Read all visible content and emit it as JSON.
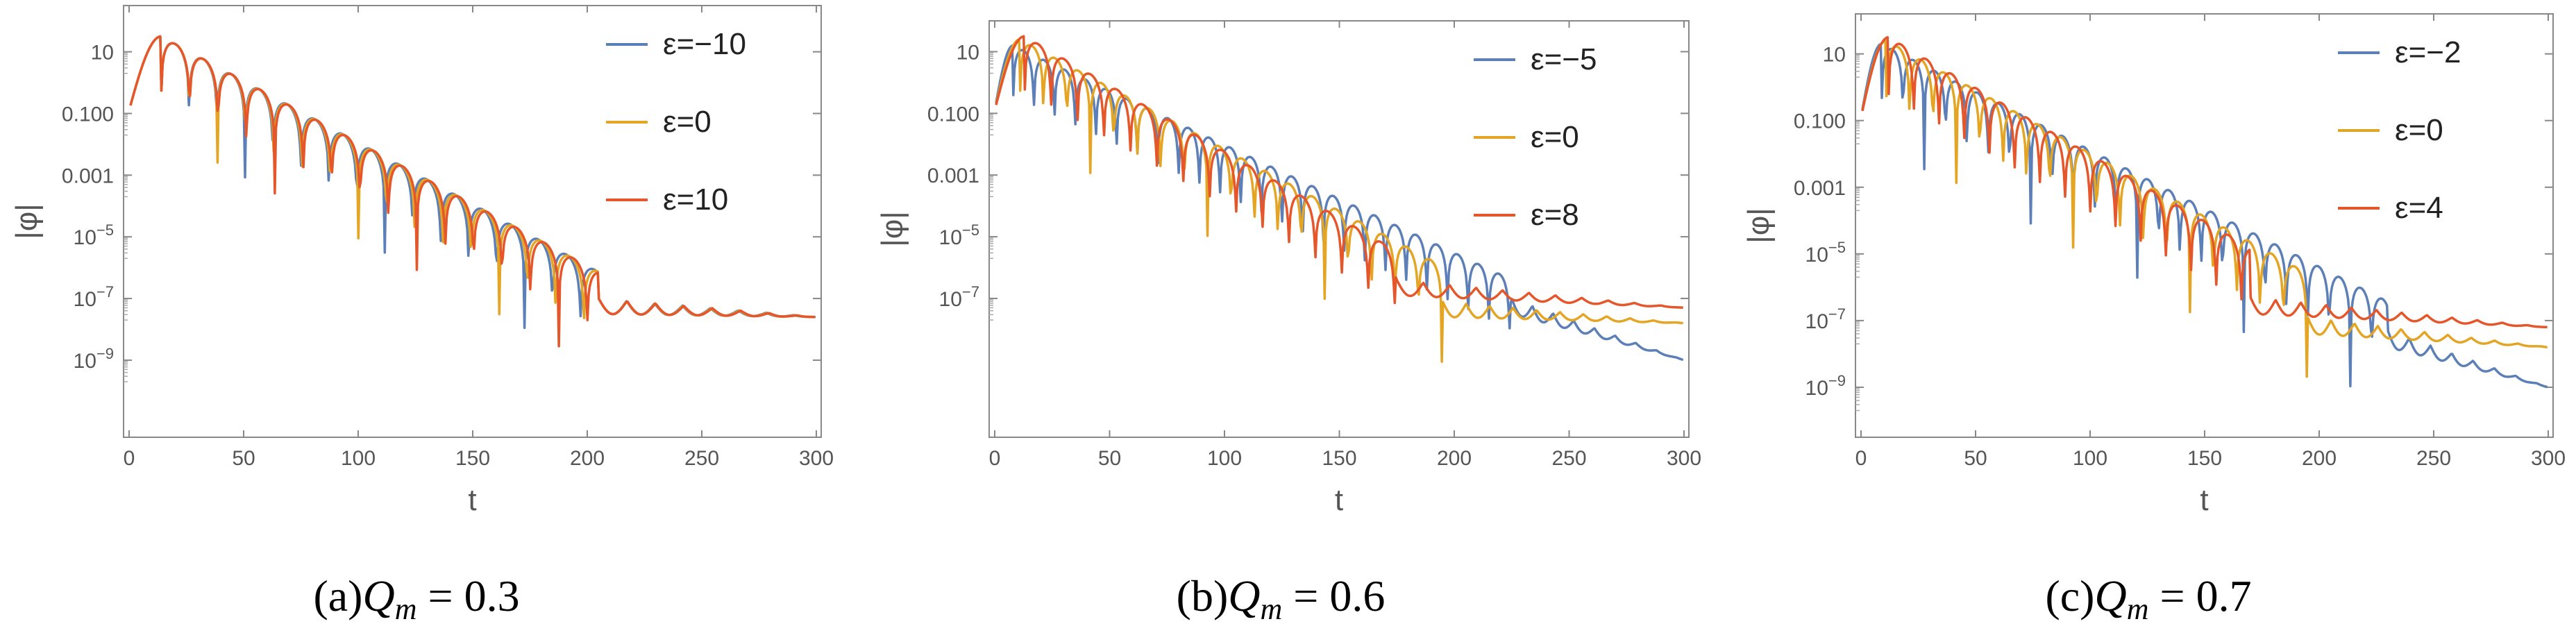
{
  "chart_data": [
    {
      "type": "line",
      "panel": "a",
      "caption_label": "(a)",
      "caption_symbol": "Q",
      "caption_sub": "m",
      "caption_eq": " = 0.3",
      "xlabel": "t",
      "ylabel": "|φ|",
      "yscale": "log",
      "xlim": [
        0,
        300
      ],
      "ylim_log10": [
        -11.5,
        2.5
      ],
      "xticks": [
        0,
        50,
        100,
        150,
        200,
        250,
        300
      ],
      "yticks": [
        {
          "log": 1,
          "label": "10"
        },
        {
          "log": -1,
          "label": "0.100"
        },
        {
          "log": -3,
          "label": "0.001"
        },
        {
          "log": -5,
          "label": "10",
          "exp": "−5"
        },
        {
          "log": -7,
          "label": "10",
          "exp": "−7"
        },
        {
          "log": -9,
          "label": "10",
          "exp": "−9"
        }
      ],
      "legend_position": "top-right",
      "series": [
        {
          "name": "ε=−10",
          "color": "#5b7fb6",
          "peak_t": 14,
          "peak_log": 1.5,
          "decay_per_t": -0.04,
          "period": 12.2,
          "tail_t": 205,
          "tail_log": -7.0,
          "tail_end_log": -7.6
        },
        {
          "name": "ε=0",
          "color": "#e3a523",
          "peak_t": 14,
          "peak_log": 1.5,
          "decay_per_t": -0.04,
          "period": 12.3,
          "tail_t": 205,
          "tail_log": -7.0,
          "tail_end_log": -7.6
        },
        {
          "name": "ε=10",
          "color": "#e5562a",
          "peak_t": 14,
          "peak_log": 1.5,
          "decay_per_t": -0.04,
          "period": 12.4,
          "tail_t": 205,
          "tail_log": -7.0,
          "tail_end_log": -7.6
        }
      ]
    },
    {
      "type": "line",
      "panel": "b",
      "caption_label": "(b)",
      "caption_symbol": "Q",
      "caption_sub": "m",
      "caption_eq": " = 0.6",
      "xlabel": "t",
      "ylabel": "|φ|",
      "yscale": "log",
      "xlim": [
        0,
        300
      ],
      "ylim_log10": [
        -11.5,
        2.0
      ],
      "xticks": [
        0,
        50,
        100,
        150,
        200,
        250,
        300
      ],
      "yticks": [
        {
          "log": 1,
          "label": "10"
        },
        {
          "log": -1,
          "label": "0.100"
        },
        {
          "log": -3,
          "label": "0.001"
        },
        {
          "log": -5,
          "label": "10",
          "exp": "−5"
        },
        {
          "log": -7,
          "label": "10",
          "exp": "−7"
        }
      ],
      "legend_position": "top-right",
      "series": [
        {
          "name": "ε=−5",
          "color": "#5b7fb6",
          "peak_t": 8,
          "peak_log": 1.2,
          "decay_per_t": -0.035,
          "period": 9.0,
          "tail_t": 225,
          "tail_log": -7.0,
          "tail_end_log": -9.0
        },
        {
          "name": "ε=0",
          "color": "#e3a523",
          "peak_t": 11,
          "peak_log": 1.4,
          "decay_per_t": -0.04,
          "period": 10.2,
          "tail_t": 195,
          "tail_log": -7.1,
          "tail_end_log": -7.8
        },
        {
          "name": "ε=8",
          "color": "#e5562a",
          "peak_t": 13,
          "peak_log": 1.5,
          "decay_per_t": -0.043,
          "period": 11.5,
          "tail_t": 175,
          "tail_log": -6.4,
          "tail_end_log": -7.3
        }
      ]
    },
    {
      "type": "line",
      "panel": "c",
      "caption_label": "(c)",
      "caption_symbol": "Q",
      "caption_sub": "m",
      "caption_eq": " = 0.7",
      "xlabel": "t",
      "ylabel": "|φ|",
      "yscale": "log",
      "xlim": [
        0,
        300
      ],
      "ylim_log10": [
        -10.5,
        2.2
      ],
      "xticks": [
        0,
        50,
        100,
        150,
        200,
        250,
        300
      ],
      "yticks": [
        {
          "log": 1,
          "label": "10"
        },
        {
          "log": -1,
          "label": "0.100"
        },
        {
          "log": -3,
          "label": "0.001"
        },
        {
          "log": -5,
          "label": "10",
          "exp": "−5"
        },
        {
          "log": -7,
          "label": "10",
          "exp": "−7"
        },
        {
          "log": -9,
          "label": "10",
          "exp": "−9"
        }
      ],
      "legend_position": "top-right",
      "series": [
        {
          "name": "ε=−2",
          "color": "#5b7fb6",
          "peak_t": 9,
          "peak_log": 1.3,
          "decay_per_t": -0.035,
          "period": 9.3,
          "tail_t": 230,
          "tail_log": -7.3,
          "tail_end_log": -9.0
        },
        {
          "name": "ε=0",
          "color": "#e3a523",
          "peak_t": 11,
          "peak_log": 1.4,
          "decay_per_t": -0.038,
          "period": 10.2,
          "tail_t": 195,
          "tail_log": -6.9,
          "tail_end_log": -7.8
        },
        {
          "name": "ε=4",
          "color": "#e5562a",
          "peak_t": 12,
          "peak_log": 1.5,
          "decay_per_t": -0.04,
          "period": 11.0,
          "tail_t": 170,
          "tail_log": -6.3,
          "tail_end_log": -7.2
        }
      ]
    }
  ]
}
